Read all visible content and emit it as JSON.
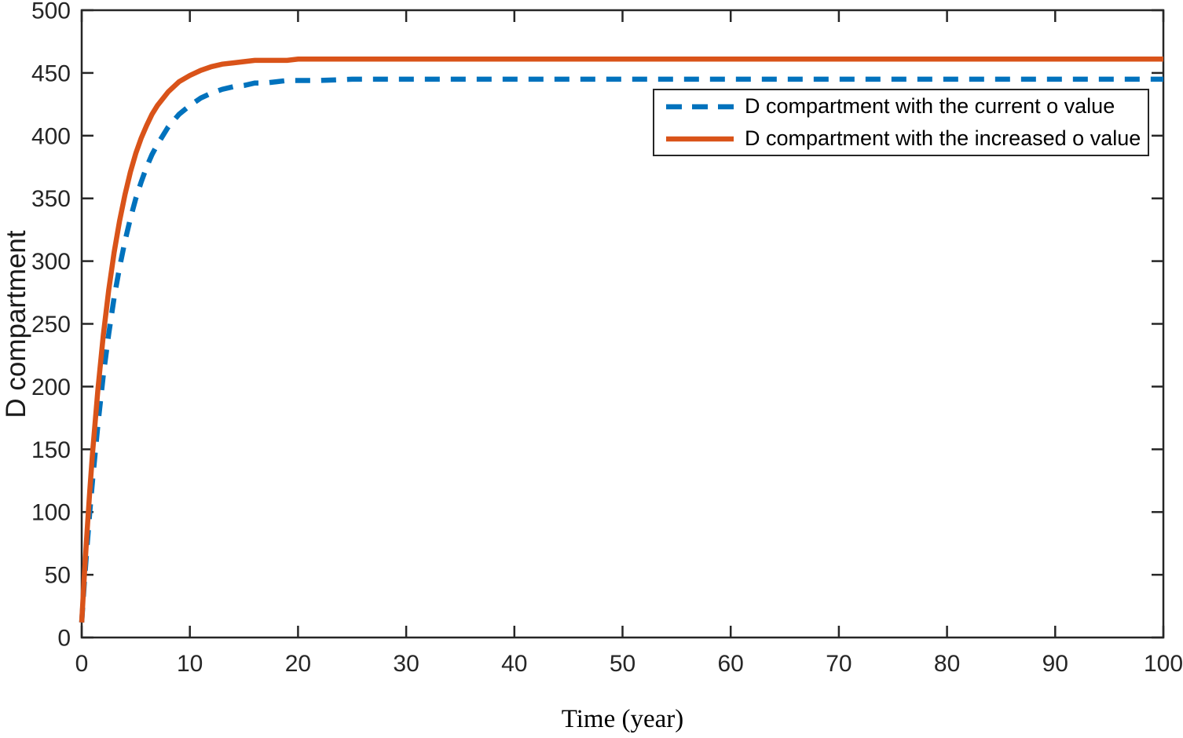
{
  "figure": {
    "background": "#FFFFFF",
    "axis_color": "#262626",
    "text_color": "#000000"
  },
  "chart_data": {
    "type": "line",
    "xlabel": "Time (year)",
    "ylabel": "D compartment",
    "xlim": [
      0,
      100
    ],
    "ylim": [
      0,
      500
    ],
    "x_ticks": [
      0,
      10,
      20,
      30,
      40,
      50,
      60,
      70,
      80,
      90,
      100
    ],
    "y_ticks": [
      0,
      50,
      100,
      150,
      200,
      250,
      300,
      350,
      400,
      450,
      500
    ],
    "grid": false,
    "legend": {
      "position": "upper-right-inside",
      "boxed": true
    },
    "series": [
      {
        "key": "current",
        "name": "D compartment with the current o value",
        "color": "#0072BD",
        "line_style": "dashed",
        "steady_state_value": 445,
        "x": [
          0,
          0.25,
          0.5,
          0.75,
          1,
          1.5,
          2,
          2.5,
          3,
          3.5,
          4,
          4.5,
          5,
          5.5,
          6,
          6.5,
          7,
          8,
          9,
          10,
          11,
          12,
          13,
          14,
          15,
          16,
          17,
          18,
          19,
          20,
          22,
          25,
          30,
          35,
          40,
          45,
          50,
          55,
          60,
          65,
          70,
          75,
          80,
          85,
          90,
          95,
          100
        ],
        "y": [
          12,
          44,
          73,
          100,
          125,
          170,
          209,
          242,
          271,
          295,
          316,
          334,
          350,
          363,
          375,
          385,
          393,
          407,
          417,
          424,
          430,
          434,
          437,
          439,
          440,
          442,
          442,
          443,
          444,
          444,
          444,
          445,
          445,
          445,
          445,
          445,
          445,
          445,
          445,
          445,
          445,
          445,
          445,
          445,
          445,
          445,
          445
        ]
      },
      {
        "key": "increased",
        "name": "D compartment with the increased o value",
        "color": "#D95319",
        "line_style": "solid",
        "steady_state_value": 461,
        "x": [
          0,
          0.25,
          0.5,
          0.75,
          1,
          1.5,
          2,
          2.5,
          3,
          3.5,
          4,
          4.5,
          5,
          5.5,
          6,
          6.5,
          7,
          8,
          9,
          10,
          11,
          12,
          13,
          14,
          15,
          16,
          17,
          18,
          19,
          20,
          22,
          25,
          30,
          35,
          40,
          45,
          50,
          55,
          60,
          65,
          70,
          75,
          80,
          85,
          90,
          95,
          100
        ],
        "y": [
          12,
          50,
          85,
          117,
          147,
          198,
          241,
          277,
          307,
          332,
          353,
          371,
          386,
          398,
          408,
          417,
          424,
          435,
          443,
          448,
          452,
          455,
          457,
          458,
          459,
          460,
          460,
          460,
          460,
          461,
          461,
          461,
          461,
          461,
          461,
          461,
          461,
          461,
          461,
          461,
          461,
          461,
          461,
          461,
          461,
          461,
          461
        ]
      }
    ]
  }
}
